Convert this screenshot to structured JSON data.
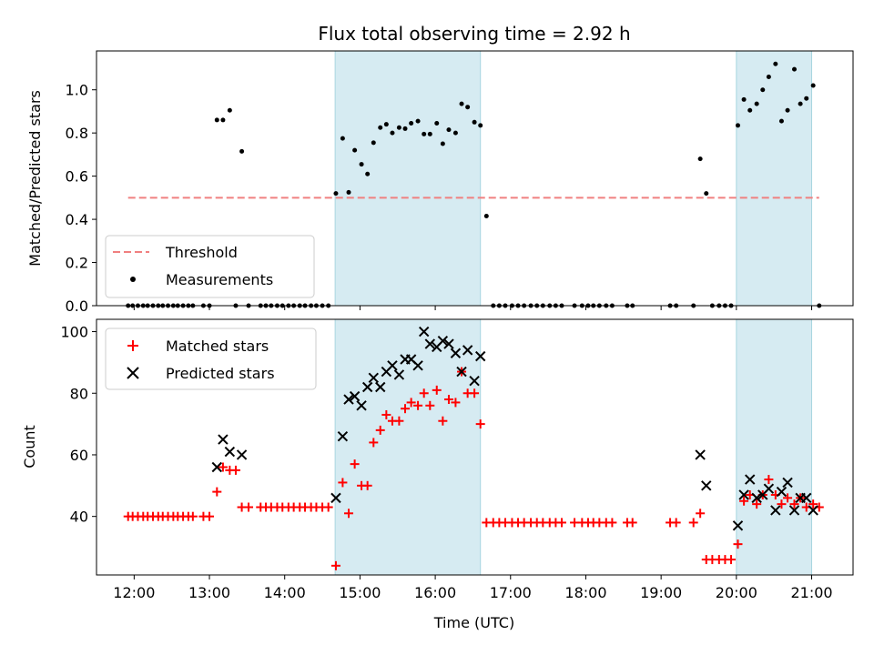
{
  "chart_data": [
    {
      "type": "scatter",
      "title": "Flux total observing time = 2.92 h",
      "xlabel": "",
      "ylabel": "Matched/Predicted stars",
      "xlim": [
        11.5,
        21.55
      ],
      "ylim": [
        0,
        1.18
      ],
      "yticks": [
        0.0,
        0.2,
        0.4,
        0.6,
        0.8,
        1.0
      ],
      "ytick_labels": [
        "0.0",
        "0.2",
        "0.4",
        "0.6",
        "0.8",
        "1.0"
      ],
      "shaded_intervals": [
        [
          14.67,
          16.6
        ],
        [
          20.0,
          21.0
        ]
      ],
      "threshold": {
        "name": "Threshold",
        "y": 0.5,
        "x": [
          11.92,
          21.1
        ],
        "color": "#f08080"
      },
      "legend": {
        "placement": "lower-left",
        "entries": [
          "Threshold",
          "Measurements"
        ]
      },
      "series": [
        {
          "name": "Measurements",
          "color": "#000000",
          "x": [
            11.92,
            11.98,
            12.05,
            12.12,
            12.18,
            12.25,
            12.32,
            12.38,
            12.45,
            12.52,
            12.58,
            12.65,
            12.72,
            12.78,
            12.92,
            13.0,
            13.1,
            13.18,
            13.27,
            13.35,
            13.43,
            13.52,
            13.68,
            13.75,
            13.82,
            13.9,
            13.97,
            14.05,
            14.12,
            14.2,
            14.27,
            14.35,
            14.42,
            14.5,
            14.58,
            14.68,
            14.77,
            14.85,
            14.93,
            15.02,
            15.1,
            15.18,
            15.27,
            15.35,
            15.43,
            15.52,
            15.6,
            15.68,
            15.77,
            15.85,
            15.93,
            16.02,
            16.1,
            16.18,
            16.27,
            16.35,
            16.43,
            16.52,
            16.6,
            16.68,
            16.77,
            16.85,
            16.93,
            17.02,
            17.1,
            17.18,
            17.27,
            17.35,
            17.43,
            17.52,
            17.6,
            17.68,
            17.85,
            17.95,
            18.03,
            18.1,
            18.18,
            18.27,
            18.35,
            18.55,
            18.62,
            19.12,
            19.2,
            19.43,
            19.52,
            19.6,
            19.68,
            19.77,
            19.85,
            19.93,
            20.02,
            20.1,
            20.18,
            20.27,
            20.35,
            20.43,
            20.52,
            20.6,
            20.68,
            20.77,
            20.85,
            20.93,
            21.02,
            21.1
          ],
          "y": [
            0,
            0,
            0,
            0,
            0,
            0,
            0,
            0,
            0,
            0,
            0,
            0,
            0,
            0,
            0,
            0,
            0.86,
            0.86,
            0.905,
            0,
            0.715,
            0,
            0,
            0,
            0,
            0,
            0,
            0,
            0,
            0,
            0,
            0,
            0,
            0,
            0,
            0.52,
            0.775,
            0.525,
            0.72,
            0.655,
            0.61,
            0.755,
            0.825,
            0.84,
            0.8,
            0.825,
            0.82,
            0.845,
            0.855,
            0.795,
            0.795,
            0.845,
            0.75,
            0.815,
            0.8,
            0.935,
            0.92,
            0.85,
            0.835,
            0.415,
            0,
            0,
            0,
            0,
            0,
            0,
            0,
            0,
            0,
            0,
            0,
            0,
            0,
            0,
            0,
            0,
            0,
            0,
            0,
            0,
            0,
            0,
            0,
            0,
            0.68,
            0.52,
            0,
            0,
            0,
            0,
            0.835,
            0.955,
            0.905,
            0.935,
            1.0,
            1.06,
            1.12,
            0.855,
            0.905,
            1.095,
            0.935,
            0.96,
            1.02,
            0
          ]
        }
      ]
    },
    {
      "type": "scatter",
      "title": "",
      "xlabel": "Time (UTC)",
      "ylabel": "Count",
      "xlim": [
        11.5,
        21.55
      ],
      "ylim": [
        21,
        104
      ],
      "xticks": [
        12,
        13,
        14,
        15,
        16,
        17,
        18,
        19,
        20,
        21
      ],
      "xtick_labels": [
        "12:00",
        "13:00",
        "14:00",
        "15:00",
        "16:00",
        "17:00",
        "18:00",
        "19:00",
        "20:00",
        "21:00"
      ],
      "yticks": [
        40,
        60,
        80,
        100
      ],
      "ytick_labels": [
        "40",
        "60",
        "80",
        "100"
      ],
      "shaded_intervals": [
        [
          14.67,
          16.6
        ],
        [
          20.0,
          21.0
        ]
      ],
      "legend": {
        "placement": "top-left",
        "entries": [
          "Matched stars",
          "Predicted stars"
        ]
      },
      "series": [
        {
          "name": "Matched stars",
          "marker": "plus",
          "color": "#ff0000",
          "x": [
            11.92,
            11.98,
            12.05,
            12.12,
            12.18,
            12.25,
            12.32,
            12.38,
            12.45,
            12.52,
            12.58,
            12.65,
            12.72,
            12.78,
            12.92,
            13.0,
            13.1,
            13.18,
            13.27,
            13.35,
            13.43,
            13.52,
            13.68,
            13.75,
            13.82,
            13.9,
            13.97,
            14.05,
            14.12,
            14.2,
            14.27,
            14.35,
            14.42,
            14.5,
            14.58,
            14.68,
            14.77,
            14.85,
            14.93,
            15.02,
            15.1,
            15.18,
            15.27,
            15.35,
            15.43,
            15.52,
            15.6,
            15.68,
            15.77,
            15.85,
            15.93,
            16.02,
            16.1,
            16.18,
            16.27,
            16.35,
            16.43,
            16.52,
            16.6,
            16.68,
            16.77,
            16.85,
            16.93,
            17.02,
            17.1,
            17.18,
            17.27,
            17.35,
            17.43,
            17.52,
            17.6,
            17.68,
            17.85,
            17.95,
            18.03,
            18.1,
            18.18,
            18.27,
            18.35,
            18.55,
            18.62,
            19.12,
            19.2,
            19.43,
            19.52,
            19.6,
            19.68,
            19.77,
            19.85,
            19.93,
            20.02,
            20.1,
            20.18,
            20.27,
            20.35,
            20.43,
            20.52,
            20.6,
            20.68,
            20.77,
            20.85,
            20.93,
            21.02,
            21.1
          ],
          "y": [
            40,
            40,
            40,
            40,
            40,
            40,
            40,
            40,
            40,
            40,
            40,
            40,
            40,
            40,
            40,
            40,
            48,
            56,
            55,
            55,
            43,
            43,
            43,
            43,
            43,
            43,
            43,
            43,
            43,
            43,
            43,
            43,
            43,
            43,
            43,
            24,
            51,
            41,
            57,
            50,
            50,
            64,
            68,
            73,
            71,
            71,
            75,
            77,
            76,
            80,
            76,
            81,
            71,
            78,
            77,
            87,
            80,
            80,
            70,
            38,
            38,
            38,
            38,
            38,
            38,
            38,
            38,
            38,
            38,
            38,
            38,
            38,
            38,
            38,
            38,
            38,
            38,
            38,
            38,
            38,
            38,
            38,
            38,
            38,
            41,
            26,
            26,
            26,
            26,
            26,
            31,
            45,
            47,
            44,
            47,
            52,
            47,
            44,
            46,
            44,
            46,
            43,
            44,
            43
          ]
        },
        {
          "name": "Predicted stars",
          "marker": "x",
          "color": "#000000",
          "x": [
            13.1,
            13.18,
            13.27,
            13.43,
            14.68,
            14.77,
            14.85,
            14.93,
            15.02,
            15.1,
            15.18,
            15.27,
            15.35,
            15.43,
            15.52,
            15.6,
            15.68,
            15.77,
            15.85,
            15.93,
            16.02,
            16.1,
            16.18,
            16.27,
            16.35,
            16.43,
            16.52,
            16.6,
            16.68,
            19.52,
            19.6,
            20.02,
            20.1,
            20.18,
            20.27,
            20.35,
            20.43,
            20.52,
            20.6,
            20.68,
            20.77,
            20.85,
            20.93,
            21.02
          ],
          "y": [
            56,
            65,
            61,
            60,
            46,
            66,
            78,
            79,
            76,
            82,
            85,
            82,
            87,
            89,
            86,
            91,
            91,
            89,
            100,
            96,
            95,
            97,
            96,
            93,
            87,
            94,
            84,
            92,
            null,
            60,
            50,
            37,
            47,
            52,
            46,
            47,
            49,
            42,
            48,
            51,
            42,
            46,
            46,
            42
          ]
        }
      ]
    }
  ]
}
